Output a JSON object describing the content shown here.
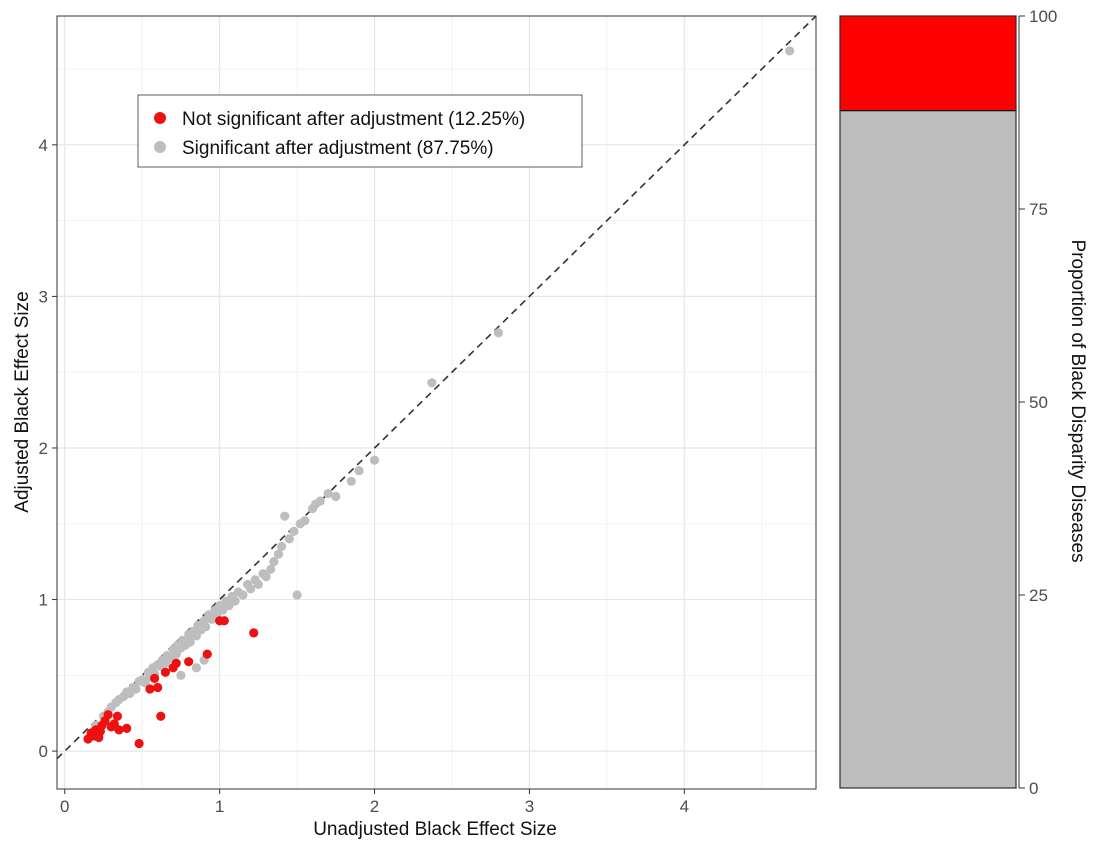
{
  "chart_data": [
    {
      "type": "scatter",
      "xlabel": "Unadjusted Black Effect Size",
      "ylabel": "Adjusted Black Effect Size",
      "xlim": [
        -0.05,
        4.85
      ],
      "ylim": [
        -0.25,
        4.85
      ],
      "x_ticks": [
        0,
        1,
        2,
        3,
        4
      ],
      "y_ticks": [
        0,
        1,
        2,
        3,
        4
      ],
      "grid": true,
      "reference_line": {
        "type": "identity",
        "style": "dashed",
        "color": "#333333"
      },
      "legend_position": "top-left",
      "series": [
        {
          "name": "Not significant after adjustment (12.25%)",
          "color": "#ee1111",
          "points": [
            [
              0.15,
              0.08
            ],
            [
              0.17,
              0.12
            ],
            [
              0.19,
              0.1
            ],
            [
              0.2,
              0.14
            ],
            [
              0.22,
              0.09
            ],
            [
              0.23,
              0.13
            ],
            [
              0.24,
              0.17
            ],
            [
              0.26,
              0.2
            ],
            [
              0.28,
              0.24
            ],
            [
              0.3,
              0.16
            ],
            [
              0.32,
              0.18
            ],
            [
              0.34,
              0.23
            ],
            [
              0.35,
              0.14
            ],
            [
              0.4,
              0.15
            ],
            [
              0.48,
              0.05
            ],
            [
              0.55,
              0.41
            ],
            [
              0.58,
              0.48
            ],
            [
              0.6,
              0.42
            ],
            [
              0.62,
              0.23
            ],
            [
              0.65,
              0.52
            ],
            [
              0.7,
              0.55
            ],
            [
              0.72,
              0.58
            ],
            [
              0.8,
              0.59
            ],
            [
              0.92,
              0.64
            ],
            [
              1.0,
              0.86
            ],
            [
              1.03,
              0.86
            ],
            [
              1.22,
              0.78
            ]
          ]
        },
        {
          "name": "Significant after adjustment (87.75%)",
          "color": "#bebebe",
          "points": [
            [
              0.2,
              0.17
            ],
            [
              0.25,
              0.23
            ],
            [
              0.28,
              0.26
            ],
            [
              0.3,
              0.29
            ],
            [
              0.33,
              0.32
            ],
            [
              0.35,
              0.34
            ],
            [
              0.38,
              0.36
            ],
            [
              0.4,
              0.39
            ],
            [
              0.42,
              0.38
            ],
            [
              0.44,
              0.42
            ],
            [
              0.46,
              0.41
            ],
            [
              0.48,
              0.46
            ],
            [
              0.5,
              0.47
            ],
            [
              0.52,
              0.45
            ],
            [
              0.54,
              0.52
            ],
            [
              0.55,
              0.49
            ],
            [
              0.57,
              0.55
            ],
            [
              0.58,
              0.51
            ],
            [
              0.6,
              0.57
            ],
            [
              0.62,
              0.56
            ],
            [
              0.63,
              0.6
            ],
            [
              0.65,
              0.58
            ],
            [
              0.66,
              0.63
            ],
            [
              0.68,
              0.61
            ],
            [
              0.7,
              0.67
            ],
            [
              0.72,
              0.64
            ],
            [
              0.73,
              0.7
            ],
            [
              0.75,
              0.68
            ],
            [
              0.76,
              0.73
            ],
            [
              0.78,
              0.7
            ],
            [
              0.8,
              0.77
            ],
            [
              0.81,
              0.72
            ],
            [
              0.83,
              0.79
            ],
            [
              0.85,
              0.76
            ],
            [
              0.86,
              0.83
            ],
            [
              0.88,
              0.8
            ],
            [
              0.9,
              0.86
            ],
            [
              0.91,
              0.82
            ],
            [
              0.93,
              0.9
            ],
            [
              0.95,
              0.87
            ],
            [
              0.97,
              0.93
            ],
            [
              0.98,
              0.9
            ],
            [
              1.0,
              0.96
            ],
            [
              1.02,
              0.93
            ],
            [
              1.04,
              0.99
            ],
            [
              1.06,
              0.96
            ],
            [
              1.08,
              1.02
            ],
            [
              1.1,
              0.99
            ],
            [
              1.12,
              1.05
            ],
            [
              1.15,
              1.03
            ],
            [
              1.18,
              1.1
            ],
            [
              1.2,
              1.07
            ],
            [
              1.23,
              1.13
            ],
            [
              1.25,
              1.1
            ],
            [
              1.28,
              1.17
            ],
            [
              1.3,
              1.15
            ],
            [
              1.33,
              1.2
            ],
            [
              1.35,
              1.25
            ],
            [
              1.38,
              1.3
            ],
            [
              1.4,
              1.35
            ],
            [
              1.42,
              1.55
            ],
            [
              1.45,
              1.4
            ],
            [
              1.48,
              1.45
            ],
            [
              1.5,
              1.03
            ],
            [
              1.52,
              1.5
            ],
            [
              1.55,
              1.52
            ],
            [
              1.6,
              1.6
            ],
            [
              1.62,
              1.63
            ],
            [
              1.65,
              1.65
            ],
            [
              1.7,
              1.7
            ],
            [
              1.75,
              1.68
            ],
            [
              1.85,
              1.78
            ],
            [
              1.9,
              1.85
            ],
            [
              2.0,
              1.92
            ],
            [
              2.37,
              2.43
            ],
            [
              2.8,
              2.76
            ],
            [
              4.68,
              4.62
            ],
            [
              0.85,
              0.55
            ],
            [
              0.9,
              0.6
            ],
            [
              0.75,
              0.5
            ]
          ]
        }
      ]
    },
    {
      "type": "bar",
      "stacked": true,
      "ylabel": "Proportion of Black Disparity Diseases",
      "ylim": [
        0,
        100
      ],
      "y_ticks": [
        0,
        25,
        50,
        75,
        100
      ],
      "axis_position": "right",
      "segments": [
        {
          "name": "Significant after adjustment",
          "value": 87.75,
          "color": "#bebebe"
        },
        {
          "name": "Not significant after adjustment",
          "value": 12.25,
          "color": "#ff0000"
        }
      ]
    }
  ]
}
